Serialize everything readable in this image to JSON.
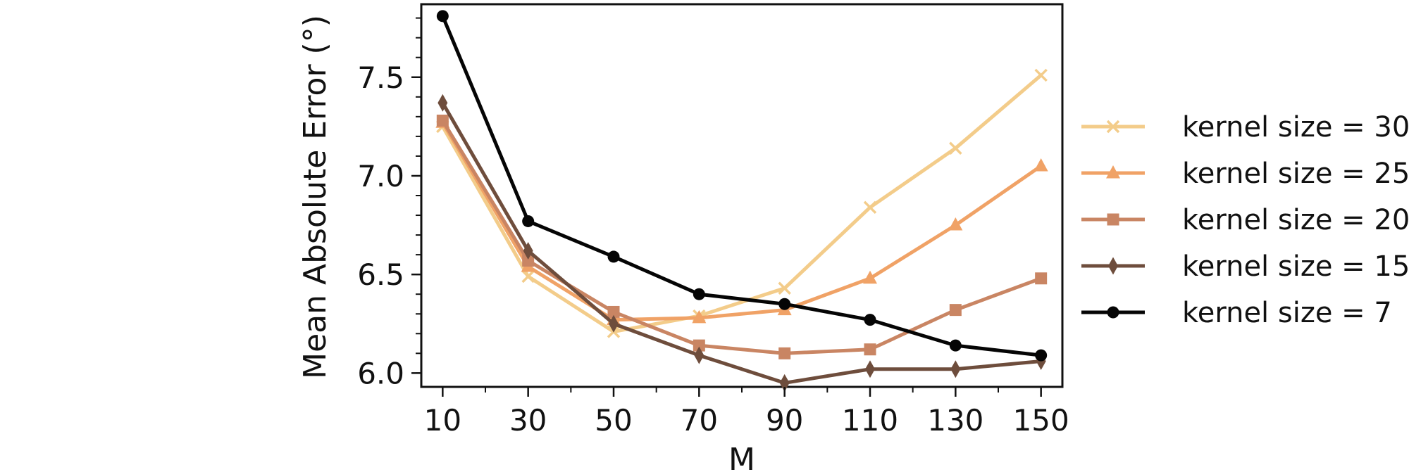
{
  "chart_data": {
    "type": "line",
    "xlabel": "M",
    "ylabel": "Mean Absolute Error (°)",
    "x": [
      10,
      30,
      50,
      70,
      90,
      110,
      130,
      150
    ],
    "x_ticks": [
      "10",
      "30",
      "50",
      "70",
      "90",
      "110",
      "130",
      "150"
    ],
    "y_ticks": [
      "6.0",
      "6.5",
      "7.0",
      "7.5"
    ],
    "xlim": [
      5,
      155
    ],
    "ylim": [
      5.93,
      7.87
    ],
    "grid": false,
    "legend_position": "right outside",
    "series": [
      {
        "name": "kernel size = 30",
        "color": "#f3cc8a",
        "marker": "x",
        "values": [
          7.25,
          6.49,
          6.21,
          6.29,
          6.43,
          6.84,
          7.14,
          7.51
        ]
      },
      {
        "name": "kernel size = 25",
        "color": "#f0a266",
        "marker": "triangle",
        "values": [
          7.27,
          6.54,
          6.27,
          6.28,
          6.32,
          6.48,
          6.75,
          7.05
        ]
      },
      {
        "name": "kernel size = 20",
        "color": "#c98563",
        "marker": "square",
        "values": [
          7.28,
          6.57,
          6.31,
          6.14,
          6.1,
          6.12,
          6.32,
          6.48
        ]
      },
      {
        "name": "kernel size = 15",
        "color": "#6e4d3c",
        "marker": "diamond",
        "values": [
          7.37,
          6.62,
          6.25,
          6.09,
          5.95,
          6.02,
          6.02,
          6.06
        ]
      },
      {
        "name": "kernel size = 7",
        "color": "#050505",
        "marker": "circle",
        "values": [
          7.81,
          6.77,
          6.59,
          6.4,
          6.35,
          6.27,
          6.14,
          6.09
        ]
      }
    ]
  }
}
